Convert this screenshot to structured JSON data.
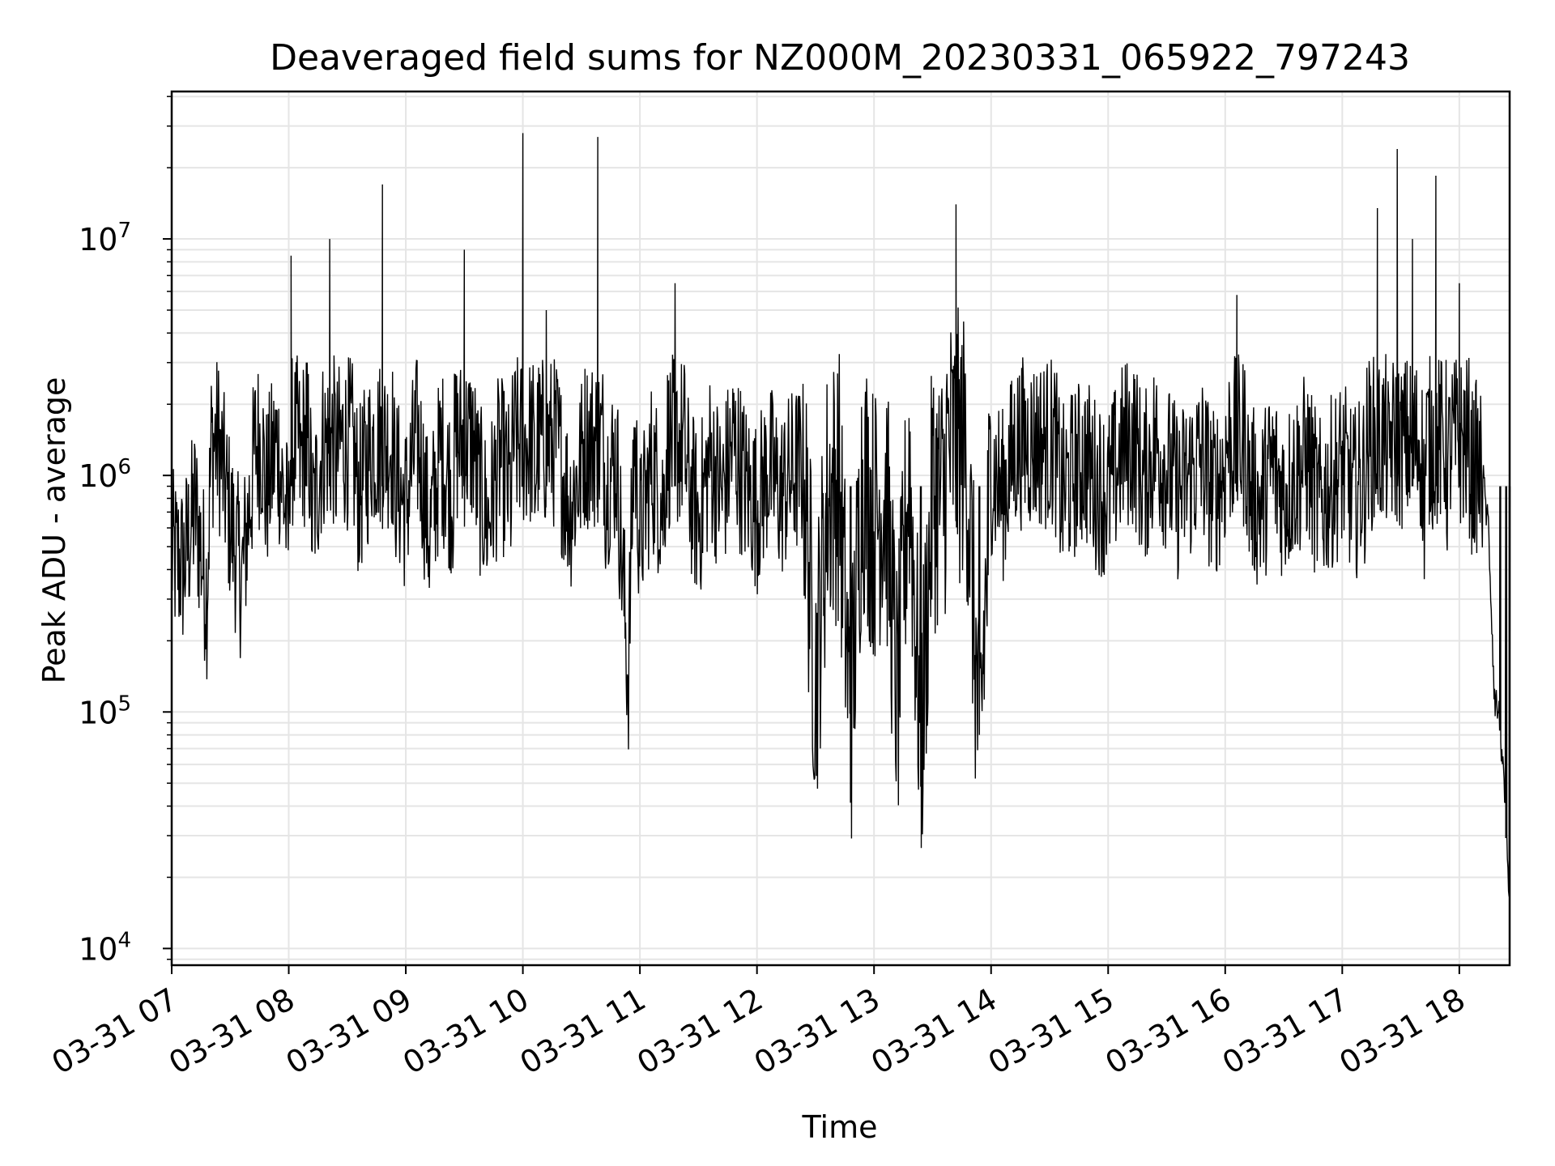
{
  "chart_data": {
    "type": "line",
    "title": "Deaveraged field sums for NZ000M_20230331_065922_797243",
    "xlabel": "Time",
    "ylabel": "Peak ADU - average",
    "yscale": "log",
    "ylim": [
      8500,
      42000000
    ],
    "xlim_hours": [
      7.0,
      18.43
    ],
    "grid": "major and minor",
    "line_color": "#000000",
    "grid_color": "#e5e5e5",
    "x_ticks": [
      {
        "hour": 7,
        "label": "03-31 07"
      },
      {
        "hour": 8,
        "label": "03-31 08"
      },
      {
        "hour": 9,
        "label": "03-31 09"
      },
      {
        "hour": 10,
        "label": "03-31 10"
      },
      {
        "hour": 11,
        "label": "03-31 11"
      },
      {
        "hour": 12,
        "label": "03-31 12"
      },
      {
        "hour": 13,
        "label": "03-31 13"
      },
      {
        "hour": 14,
        "label": "03-31 14"
      },
      {
        "hour": 15,
        "label": "03-31 15"
      },
      {
        "hour": 16,
        "label": "03-31 16"
      },
      {
        "hour": 17,
        "label": "03-31 17"
      },
      {
        "hour": 18,
        "label": "03-31 18"
      }
    ],
    "y_ticks": [
      {
        "value": 10000,
        "base": "10",
        "exp": "4"
      },
      {
        "value": 100000,
        "base": "10",
        "exp": "5"
      },
      {
        "value": 1000000,
        "base": "10",
        "exp": "6"
      },
      {
        "value": 10000000,
        "base": "10",
        "exp": "7"
      }
    ],
    "series": [
      {
        "x_hours": [
          7.0,
          7.1,
          7.2,
          7.3,
          7.35,
          7.5,
          7.6,
          7.7,
          7.75,
          7.8,
          7.9,
          8.0,
          8.02,
          8.1,
          8.15,
          8.2,
          8.3,
          8.35,
          8.4,
          8.5,
          8.6,
          8.7,
          8.8,
          8.9,
          9.0,
          9.1,
          9.2,
          9.3,
          9.4,
          9.5,
          9.6,
          9.7,
          9.8,
          9.9,
          10.0,
          10.1,
          10.2,
          10.3,
          10.4,
          10.5,
          10.64,
          10.7,
          10.8,
          10.9,
          10.95,
          11.0,
          11.1,
          11.2,
          11.3,
          11.4,
          11.5,
          11.6,
          11.7,
          11.8,
          11.9,
          12.0,
          12.1,
          12.2,
          12.3,
          12.4,
          12.5,
          12.6,
          12.7,
          12.8,
          12.9,
          13.0,
          13.1,
          13.2,
          13.3,
          13.4,
          13.5,
          13.6,
          13.7,
          13.8,
          13.9,
          14.0,
          14.1,
          14.2,
          14.3,
          14.4,
          14.5,
          14.6,
          14.7,
          14.8,
          14.9,
          15.0,
          15.1,
          15.2,
          15.3,
          15.4,
          15.5,
          15.6,
          15.7,
          15.8,
          15.9,
          16.0,
          16.1,
          16.2,
          16.3,
          16.4,
          16.5,
          16.6,
          16.7,
          16.8,
          16.9,
          17.0,
          17.1,
          17.2,
          17.3,
          17.4,
          17.47,
          17.5,
          17.6,
          17.7,
          17.8,
          17.9,
          18.0,
          18.1,
          18.15,
          18.2,
          18.25,
          18.3,
          18.35,
          18.4,
          18.43
        ],
        "y": [
          500000,
          450000,
          800000,
          350000,
          2200000,
          700000,
          400000,
          1200000,
          2500000,
          900000,
          1500000,
          600000,
          8500000,
          1100000,
          3000000,
          700000,
          1600000,
          10000000,
          1200000,
          2000000,
          900000,
          1400000,
          17000000,
          1100000,
          800000,
          1700000,
          600000,
          1400000,
          900000,
          9000000,
          1100000,
          700000,
          1300000,
          900000,
          28000000,
          1000000,
          5000000,
          1400000,
          800000,
          1200000,
          27000000,
          1000000,
          1300000,
          150000,
          1600000,
          600000,
          1200000,
          800000,
          6500000,
          1100000,
          700000,
          1300000,
          900000,
          1500000,
          1000000,
          800000,
          1200000,
          900000,
          1100000,
          1200000,
          150000,
          900000,
          1100000,
          100000,
          1200000,
          700000,
          1000000,
          120000,
          1300000,
          80000,
          1000000,
          900000,
          14000000,
          1100000,
          80000,
          1200000,
          900000,
          1400000,
          1800000,
          1700000,
          2200000,
          900000,
          1100000,
          1300000,
          1000000,
          900000,
          1300000,
          1800000,
          1000000,
          1500000,
          1200000,
          900000,
          1100000,
          1300000,
          900000,
          1200000,
          5800000,
          1000000,
          800000,
          1200000,
          900000,
          1100000,
          1300000,
          800000,
          1000000,
          1200000,
          900000,
          1100000,
          13500000,
          1000000,
          24000000,
          1200000,
          10000000,
          800000,
          18500000,
          1000000,
          6500000,
          1100000,
          1200000,
          1000000,
          600000,
          120000,
          90000,
          30000,
          12000
        ]
      }
    ]
  }
}
